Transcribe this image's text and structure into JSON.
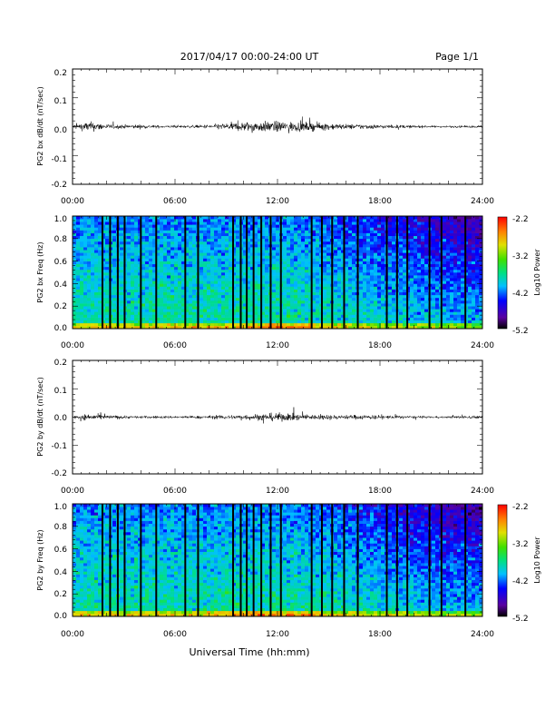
{
  "header": {
    "title": "2017/04/17  00:00-24:00 UT",
    "page": "Page 1/1"
  },
  "footer": {
    "xlabel": "Universal Time (hh:mm)"
  },
  "colorbar": {
    "ticks": [
      "-2.2",
      "-3.2",
      "-4.2",
      "-5.2"
    ],
    "label": "Log10 Power",
    "colors": [
      "#000000",
      "#5a00a0",
      "#0000ff",
      "#00c0ff",
      "#00e080",
      "#40e000",
      "#e0e000",
      "#ff8000",
      "#ff0000"
    ]
  },
  "chart_data": [
    {
      "type": "line",
      "id": "bx-dbdt",
      "ylabel": "PG2 bx dB/dt (nT/sec)",
      "xticks": [
        "00:00",
        "06:00",
        "12:00",
        "18:00",
        "24:00"
      ],
      "yticks": [
        "0.2",
        "0.1",
        "0.0",
        "-0.1",
        "-0.2"
      ],
      "xlim": [
        0,
        24
      ],
      "ylim": [
        -0.2,
        0.2
      ],
      "x_units": "hours UT",
      "envelope": {
        "x": [
          0,
          1,
          2,
          3,
          4,
          5,
          6,
          7,
          8,
          9,
          10,
          11,
          12,
          13,
          14,
          15,
          16,
          17,
          18,
          19,
          20,
          21,
          22,
          23,
          24
        ],
        "amp": [
          0.012,
          0.03,
          0.015,
          0.012,
          0.012,
          0.008,
          0.008,
          0.008,
          0.012,
          0.02,
          0.028,
          0.03,
          0.032,
          0.028,
          0.025,
          0.02,
          0.015,
          0.015,
          0.012,
          0.01,
          0.008,
          0.006,
          0.006,
          0.006,
          0.008
        ]
      }
    },
    {
      "type": "heatmap",
      "id": "bx-freq",
      "ylabel": "PG2 bx Freq (Hz)",
      "xticks": [
        "00:00",
        "06:00",
        "12:00",
        "18:00",
        "24:00"
      ],
      "yticks": [
        "1.0",
        "0.8",
        "0.6",
        "0.4",
        "0.2",
        "0.0"
      ],
      "xlim": [
        0,
        24
      ],
      "ylim": [
        0,
        1
      ],
      "zlim": [
        -5.2,
        -2.2
      ],
      "z_label": "Log10 Power",
      "data_gaps_hours": [
        1.75,
        2.2,
        2.65,
        3.05,
        4.0,
        4.9,
        6.6,
        7.35,
        9.4,
        9.85,
        10.2,
        10.6,
        11.05,
        11.6,
        12.2,
        14.0,
        14.6,
        15.2,
        15.9,
        16.7,
        18.4,
        19.0,
        19.6,
        20.9,
        21.6,
        23.0
      ]
    },
    {
      "type": "line",
      "id": "by-dbdt",
      "ylabel": "PG2 by dB/dt (nT/sec)",
      "xticks": [
        "00:00",
        "06:00",
        "12:00",
        "18:00",
        "24:00"
      ],
      "yticks": [
        "0.2",
        "0.1",
        "0.0",
        "-0.1",
        "-0.2"
      ],
      "xlim": [
        0,
        24
      ],
      "ylim": [
        -0.2,
        0.2
      ],
      "x_units": "hours UT",
      "envelope": {
        "x": [
          0,
          1,
          2,
          3,
          4,
          5,
          6,
          7,
          8,
          9,
          10,
          11,
          12,
          13,
          14,
          15,
          16,
          17,
          18,
          19,
          20,
          21,
          22,
          23,
          24
        ],
        "amp": [
          0.01,
          0.02,
          0.012,
          0.01,
          0.008,
          0.008,
          0.008,
          0.008,
          0.01,
          0.012,
          0.015,
          0.02,
          0.025,
          0.02,
          0.015,
          0.015,
          0.012,
          0.015,
          0.012,
          0.01,
          0.008,
          0.006,
          0.006,
          0.01,
          0.008
        ]
      }
    },
    {
      "type": "heatmap",
      "id": "by-freq",
      "ylabel": "PG2 by Freq (Hz)",
      "xticks": [
        "00:00",
        "06:00",
        "12:00",
        "18:00",
        "24:00"
      ],
      "yticks": [
        "1.0",
        "0.8",
        "0.6",
        "0.4",
        "0.2",
        "0.0"
      ],
      "xlim": [
        0,
        24
      ],
      "ylim": [
        0,
        1
      ],
      "zlim": [
        -5.2,
        -2.2
      ],
      "z_label": "Log10 Power",
      "data_gaps_hours": [
        1.75,
        2.2,
        2.65,
        3.05,
        4.0,
        4.9,
        6.6,
        7.35,
        9.4,
        9.85,
        10.2,
        10.6,
        11.05,
        11.6,
        12.2,
        14.0,
        14.6,
        15.2,
        15.9,
        16.7,
        18.4,
        19.0,
        19.6,
        20.9,
        21.6,
        23.0
      ]
    }
  ]
}
